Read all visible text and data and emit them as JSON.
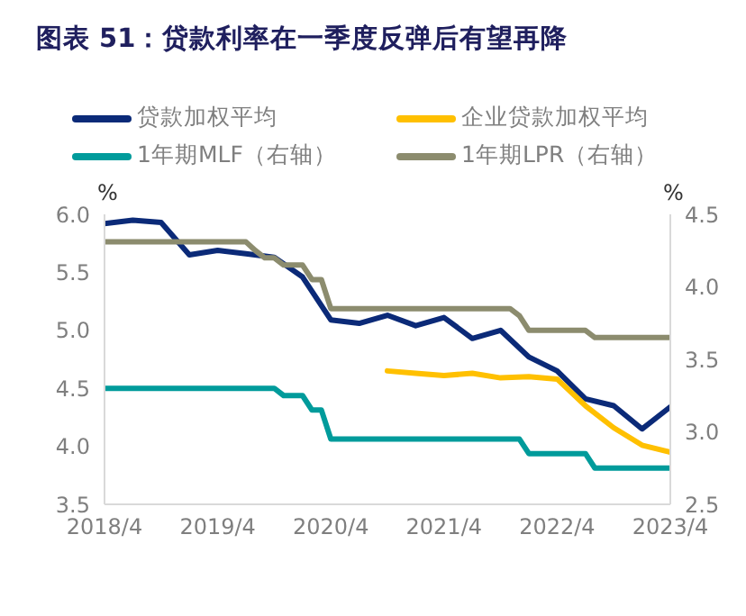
{
  "chart_data": {
    "type": "line",
    "title": "图表 51：贷款利率在一季度反弹后有望再降",
    "ylabel": "%",
    "y2label": "%",
    "ylim": [
      3.5,
      6.0
    ],
    "yticks": [
      3.5,
      {
        "value": 4,
        "label": "4.0"
      },
      4.5,
      {
        "value": 5,
        "label": "5.0"
      },
      5.5,
      {
        "value": 6,
        "label": "6.0"
      }
    ],
    "y2lim": [
      2.5,
      4.5
    ],
    "y2ticks": [
      2.5,
      {
        "value": 3,
        "label": "3.0"
      },
      3.5,
      {
        "value": 4,
        "label": "4.0"
      },
      4.5
    ],
    "xlim": [
      "2018-04",
      "2023-04"
    ],
    "xticks": [
      {
        "value": "2018-04",
        "label": "2018/4"
      },
      {
        "value": "2019-04",
        "label": "2019/4"
      },
      {
        "value": "2020-04",
        "label": "2020/4"
      },
      {
        "value": "2021-04",
        "label": "2021/4"
      },
      {
        "value": "2022-04",
        "label": "2022/4"
      },
      {
        "value": "2023-04",
        "label": "2023/4"
      }
    ],
    "grid": false,
    "legend": "top",
    "marker": "none",
    "line_style": "solid",
    "series": [
      {
        "name": "贷款加权平均",
        "color": "#0b2a78",
        "x": [
          "2018-04",
          "2018-07",
          "2018-10",
          "2019-01",
          "2019-04",
          "2019-07",
          "2019-10",
          "2020-01",
          "2020-04",
          "2020-07",
          "2020-10",
          "2021-01",
          "2021-04",
          "2021-07",
          "2021-10",
          "2022-01",
          "2022-04",
          "2022-07",
          "2022-10",
          "2023-01",
          "2023-04"
        ],
        "values": [
          5.92,
          5.95,
          5.93,
          5.65,
          5.69,
          5.66,
          5.63,
          5.46,
          5.09,
          5.06,
          5.13,
          5.04,
          5.11,
          4.93,
          5.0,
          4.77,
          4.65,
          4.41,
          4.35,
          4.15,
          4.34
        ]
      },
      {
        "name": "企业贷款加权平均",
        "color": "#ffc000",
        "x": [
          "2020-10",
          "2021-01",
          "2021-04",
          "2021-07",
          "2021-10",
          "2022-01",
          "2022-04",
          "2022-07",
          "2022-10",
          "2023-01",
          "2023-04"
        ],
        "values": [
          4.65,
          4.63,
          4.61,
          4.63,
          4.59,
          4.6,
          4.58,
          4.35,
          4.16,
          4.01,
          3.95
        ]
      },
      {
        "name": "1年期MLF（右轴）",
        "color": "#009b9b",
        "axis": "y2",
        "x": [
          "2018-04",
          "2019-10",
          "2019-11",
          "2020-01",
          "2020-02",
          "2020-03",
          "2020-04",
          "2021-12",
          "2022-01",
          "2022-07",
          "2022-08",
          "2023-04"
        ],
        "values": [
          3.3,
          3.3,
          3.25,
          3.25,
          3.15,
          3.15,
          2.95,
          2.95,
          2.85,
          2.85,
          2.75,
          2.75
        ]
      },
      {
        "name": "1年期LPR（右轴）",
        "color": "#8c8c6e",
        "axis": "y2",
        "x": [
          "2018-04",
          "2019-07",
          "2019-08",
          "2019-09",
          "2019-10",
          "2019-11",
          "2020-01",
          "2020-02",
          "2020-03",
          "2020-04",
          "2021-11",
          "2021-12",
          "2022-01",
          "2022-07",
          "2022-08",
          "2023-04"
        ],
        "values": [
          4.31,
          4.31,
          4.25,
          4.2,
          4.2,
          4.15,
          4.15,
          4.05,
          4.05,
          3.85,
          3.85,
          3.8,
          3.7,
          3.7,
          3.65,
          3.65
        ]
      }
    ]
  }
}
